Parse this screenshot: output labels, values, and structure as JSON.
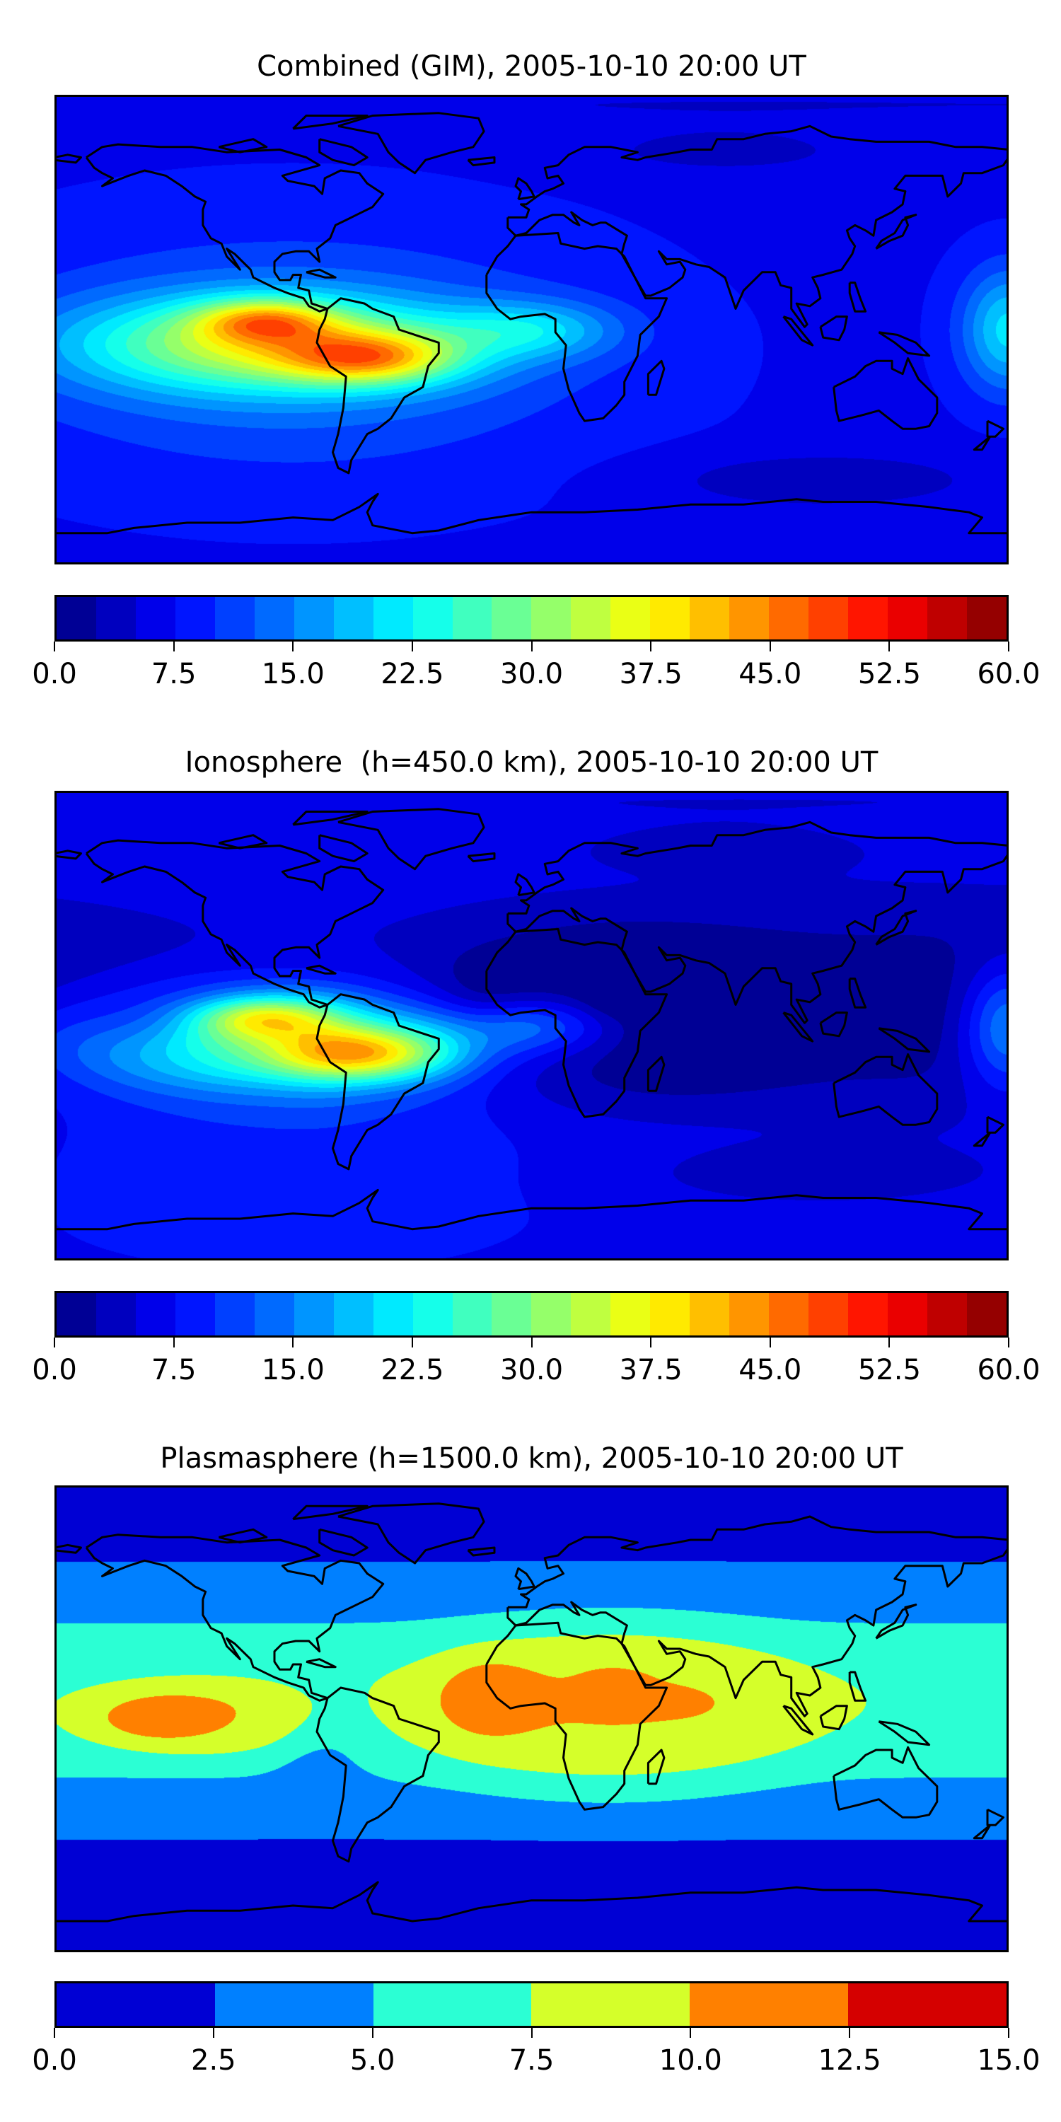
{
  "chart_data": [
    {
      "type": "heatmap",
      "title": "Combined (GIM), 2005-10-10 20:00 UT",
      "projection": "plate carree, lon -180..180, lat -90..90, coastlines",
      "colormap": "jet",
      "levels": {
        "min": 0.0,
        "max": 60.0,
        "step": 2.5
      },
      "colorbar_ticks": [
        "0.0",
        "7.5",
        "15.0",
        "22.5",
        "30.0",
        "37.5",
        "45.0",
        "52.5",
        "60.0"
      ],
      "features": {
        "maximum_value_approx": 58,
        "maximum_location": "eastern Pacific near equator (~105W, 3N)",
        "secondary_maximum": "northern South America (~60W, 10S) ~52",
        "background": "5-10"
      }
    },
    {
      "type": "heatmap",
      "title": "Ionosphere  (h=450.0 km), 2005-10-10 20:00 UT",
      "projection": "plate carree, lon -180..180, lat -90..90, coastlines",
      "colormap": "jet",
      "levels": {
        "min": 0.0,
        "max": 60.0,
        "step": 2.5
      },
      "colorbar_ticks": [
        "0.0",
        "7.5",
        "15.0",
        "22.5",
        "30.0",
        "37.5",
        "45.0",
        "52.5",
        "60.0"
      ],
      "features": {
        "maximum_value_approx": 45,
        "maximum_location": "eastern Pacific / South America",
        "minimum": "Africa, Asia, Indian Ocean 0-5"
      }
    },
    {
      "type": "heatmap",
      "title": "Plasmasphere (h=1500.0 km), 2005-10-10 20:00 UT",
      "projection": "plate carree, lon -180..180, lat -90..90, coastlines",
      "colormap": "jet",
      "levels": {
        "min": 0.0,
        "max": 15.0,
        "step": 2.5
      },
      "colorbar_ticks": [
        "0.0",
        "2.5",
        "5.0",
        "7.5",
        "10.0",
        "12.5",
        "15.0"
      ],
      "features": {
        "maximum_value_approx": 11,
        "maximum_location": "West Africa, NE Africa, central Pacific (10-12.5)",
        "background": "0-2.5 at high latitudes"
      }
    }
  ]
}
